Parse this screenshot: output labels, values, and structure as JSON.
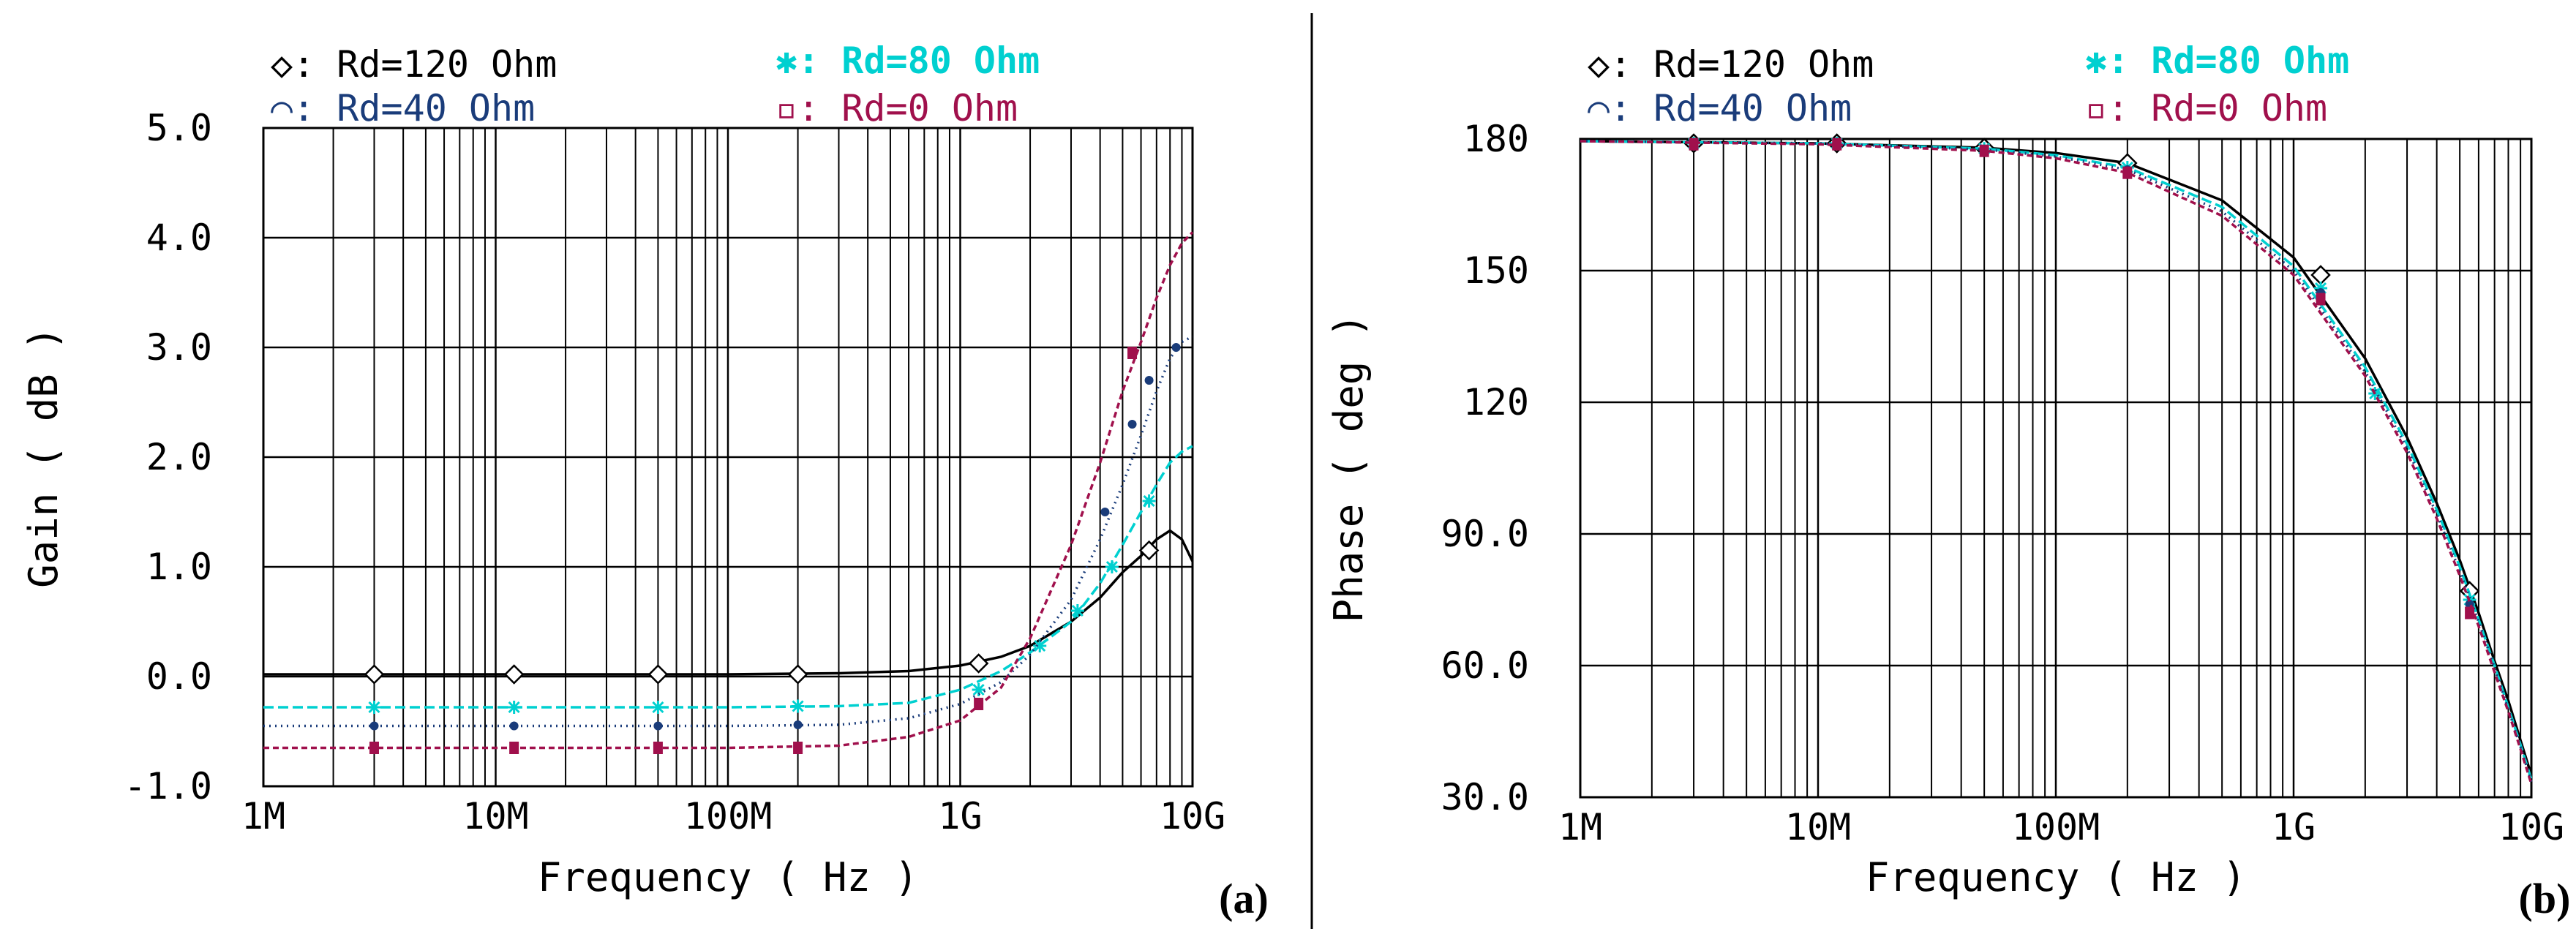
{
  "colors": {
    "rd120": "#000000",
    "rd80": "#00d0d0",
    "rd40": "#1a3c7a",
    "rd0": "#a0104c",
    "grid": "#000000"
  },
  "chart_data": [
    {
      "id": "a",
      "type": "line",
      "panel_label": "(a)",
      "xlabel": "Frequency ( Hz )",
      "ylabel": "Gain ( dB )",
      "xscale": "log",
      "xlim": [
        1000000,
        10000000000
      ],
      "ylim": [
        -1.0,
        5.0
      ],
      "x_ticks": [
        "1M",
        "10M",
        "100M",
        "1G",
        "10G"
      ],
      "y_ticks": [
        "5.0",
        "4.0",
        "3.0",
        "2.0",
        "1.0",
        "0.0",
        "-1.0"
      ],
      "legend": [
        "◇: Rd=120 Ohm",
        "✱: Rd=80 Ohm",
        "⌒: Rd=40 Ohm",
        "▫: Rd=0 Ohm"
      ],
      "series": [
        {
          "name": "Rd=120 Ohm",
          "color": "#000000",
          "dash": "",
          "marker": "diamond",
          "x": [
            1000000,
            100000000,
            300000000,
            600000000,
            1000000000,
            1500000000,
            2000000000,
            3000000000,
            4000000000,
            5000000000,
            6000000000,
            7000000000,
            8000000000,
            9000000000,
            10000000000
          ],
          "y": [
            0.02,
            0.02,
            0.03,
            0.05,
            0.1,
            0.18,
            0.28,
            0.5,
            0.72,
            0.95,
            1.1,
            1.25,
            1.33,
            1.25,
            1.05
          ],
          "markers_x": [
            3000000,
            12000000,
            50000000,
            200000000,
            1200000000,
            6500000000
          ],
          "markers_y": [
            0.02,
            0.02,
            0.02,
            0.02,
            0.12,
            1.15
          ]
        },
        {
          "name": "Rd=80 Ohm",
          "color": "#00d0d0",
          "dash": "14,6",
          "marker": "star",
          "x": [
            1000000,
            100000000,
            300000000,
            600000000,
            1000000000,
            1500000000,
            2000000000,
            3000000000,
            4000000000,
            5000000000,
            6000000000,
            7000000000,
            8000000000,
            9000000000,
            10000000000
          ],
          "y": [
            -0.28,
            -0.28,
            -0.27,
            -0.24,
            -0.12,
            0.05,
            0.22,
            0.5,
            0.85,
            1.2,
            1.5,
            1.75,
            1.95,
            2.05,
            2.1
          ],
          "markers_x": [
            3000000,
            12000000,
            50000000,
            200000000,
            1200000000,
            2200000000,
            3200000000,
            4500000000,
            6500000000
          ],
          "markers_y": [
            -0.28,
            -0.28,
            -0.28,
            -0.27,
            -0.12,
            0.28,
            0.6,
            1.0,
            1.6
          ]
        },
        {
          "name": "Rd=40 Ohm",
          "color": "#1a3c7a",
          "dash": "2,6",
          "marker": "dot",
          "x": [
            1000000,
            100000000,
            300000000,
            600000000,
            1000000000,
            1500000000,
            2000000000,
            3000000000,
            4000000000,
            5000000000,
            6000000000,
            7000000000,
            8000000000,
            9000000000,
            10000000000
          ],
          "y": [
            -0.45,
            -0.45,
            -0.44,
            -0.38,
            -0.25,
            -0.05,
            0.2,
            0.7,
            1.25,
            1.75,
            2.2,
            2.6,
            2.9,
            3.05,
            3.1
          ],
          "markers_x": [
            3000000,
            12000000,
            50000000,
            200000000,
            1200000000,
            4200000000,
            5500000000,
            6500000000,
            8500000000
          ],
          "markers_y": [
            -0.45,
            -0.45,
            -0.45,
            -0.44,
            -0.25,
            1.5,
            2.3,
            2.7,
            3.0
          ]
        },
        {
          "name": "Rd=0 Ohm",
          "color": "#a0104c",
          "dash": "8,5",
          "marker": "square",
          "x": [
            1000000,
            100000000,
            300000000,
            600000000,
            1000000000,
            1500000000,
            2000000000,
            3000000000,
            4000000000,
            5000000000,
            6000000000,
            7000000000,
            8000000000,
            9000000000,
            10000000000
          ],
          "y": [
            -0.65,
            -0.65,
            -0.63,
            -0.55,
            -0.4,
            -0.1,
            0.35,
            1.2,
            1.95,
            2.6,
            3.05,
            3.45,
            3.75,
            3.95,
            4.05
          ],
          "markers_x": [
            3000000,
            12000000,
            50000000,
            200000000,
            1200000000,
            5500000000
          ],
          "markers_y": [
            -0.65,
            -0.65,
            -0.65,
            -0.65,
            -0.25,
            2.95
          ]
        }
      ]
    },
    {
      "id": "b",
      "type": "line",
      "panel_label": "(b)",
      "xlabel": "Frequency ( Hz )",
      "ylabel": "Phase ( deg )",
      "xscale": "log",
      "xlim": [
        1000000,
        10000000000
      ],
      "ylim": [
        30,
        180
      ],
      "x_ticks": [
        "1M",
        "10M",
        "100M",
        "1G",
        "10G"
      ],
      "y_ticks": [
        "180",
        "150",
        "120",
        "90.0",
        "60.0",
        "30.0"
      ],
      "legend": [
        "◇: Rd=120 Ohm",
        "✱: Rd=80 Ohm",
        "⌒: Rd=40 Ohm",
        "▫: Rd=0 Ohm"
      ],
      "series": [
        {
          "name": "Rd=120 Ohm",
          "color": "#000000",
          "dash": "",
          "marker": "diamond",
          "x": [
            1000000,
            10000000,
            50000000,
            100000000,
            200000000,
            500000000,
            1000000000,
            2000000000,
            3000000000,
            4000000000,
            5000000000,
            6000000000,
            7000000000,
            8000000000,
            9000000000,
            10000000000
          ],
          "y": [
            179.5,
            179,
            178,
            176.8,
            174.5,
            166,
            153,
            130,
            112,
            97,
            84,
            72,
            61,
            52,
            43,
            35
          ],
          "markers_x": [
            3000000,
            12000000,
            50000000,
            200000000,
            1300000000,
            5500000000
          ],
          "markers_y": [
            179,
            179,
            178,
            174.5,
            149,
            77
          ]
        },
        {
          "name": "Rd=80 Ohm",
          "color": "#00d0d0",
          "dash": "14,6",
          "marker": "star",
          "x": [
            1000000,
            10000000,
            50000000,
            100000000,
            200000000,
            500000000,
            1000000000,
            2000000000,
            3000000000,
            4000000000,
            5000000000,
            6000000000,
            7000000000,
            8000000000,
            9000000000,
            10000000000
          ],
          "y": [
            179.5,
            179,
            177.8,
            176.3,
            173.5,
            164.5,
            151,
            128,
            110.5,
            95.5,
            82.5,
            70.5,
            60,
            50.5,
            42,
            34
          ],
          "markers_x": [
            3000000,
            12000000,
            50000000,
            200000000,
            1300000000,
            2200000000,
            5500000000
          ],
          "markers_y": [
            179,
            179,
            177.8,
            173.5,
            146,
            122,
            75
          ]
        },
        {
          "name": "Rd=40 Ohm",
          "color": "#1a3c7a",
          "dash": "2,6",
          "marker": "dot",
          "x": [
            1000000,
            10000000,
            50000000,
            100000000,
            200000000,
            500000000,
            1000000000,
            2000000000,
            3000000000,
            4000000000,
            5000000000,
            6000000000,
            7000000000,
            8000000000,
            9000000000,
            10000000000
          ],
          "y": [
            179.5,
            179,
            177.6,
            176,
            173,
            163.5,
            150,
            127,
            109.5,
            94.5,
            81.5,
            70,
            59.5,
            50,
            41.5,
            33.5
          ],
          "markers_x": [
            3000000,
            12000000,
            50000000,
            200000000,
            1300000000,
            5500000000
          ],
          "markers_y": [
            179,
            179,
            177.6,
            173,
            145,
            74
          ]
        },
        {
          "name": "Rd=0 Ohm",
          "color": "#a0104c",
          "dash": "8,5",
          "marker": "square",
          "x": [
            1000000,
            10000000,
            50000000,
            100000000,
            200000000,
            500000000,
            1000000000,
            2000000000,
            3000000000,
            4000000000,
            5000000000,
            6000000000,
            7000000000,
            8000000000,
            9000000000,
            10000000000
          ],
          "y": [
            179.5,
            178.8,
            177.3,
            175.6,
            172.3,
            162.5,
            149,
            126,
            108.5,
            93.5,
            80.5,
            69,
            58.5,
            49.5,
            41,
            33
          ],
          "markers_x": [
            3000000,
            12000000,
            50000000,
            200000000,
            1300000000,
            5500000000
          ],
          "markers_y": [
            178.8,
            178.8,
            177.3,
            172.3,
            143.5,
            72
          ]
        }
      ]
    }
  ]
}
